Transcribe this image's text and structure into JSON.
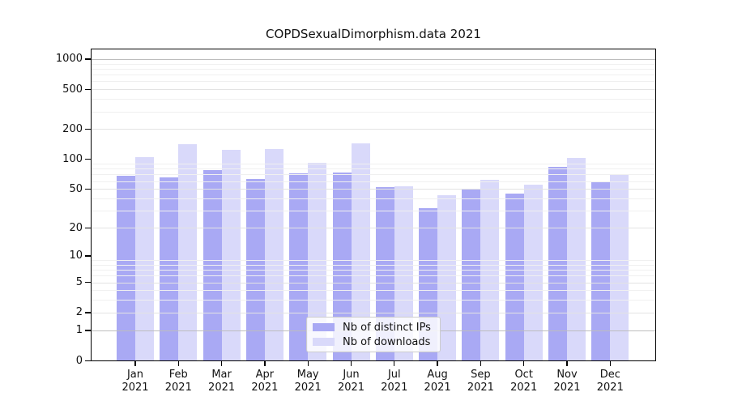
{
  "title": "COPDSexualDimorphism.data 2021",
  "chart_data": {
    "type": "bar",
    "categories": [
      "Jan",
      "Feb",
      "Mar",
      "Apr",
      "May",
      "Jun",
      "Jul",
      "Aug",
      "Sep",
      "Oct",
      "Nov",
      "Dec"
    ],
    "year": "2021",
    "series": [
      {
        "name": "Nb of distinct IPs",
        "color": "#a9a9f4",
        "values": [
          68,
          66,
          77,
          63,
          72,
          73,
          52,
          32,
          50,
          45,
          84,
          58
        ]
      },
      {
        "name": "Nb of downloads",
        "color": "#d9d9fa",
        "values": [
          104,
          140,
          123,
          127,
          92,
          145,
          53,
          43,
          62,
          55,
          103,
          69
        ]
      }
    ],
    "xlabel": "",
    "ylabel": "",
    "yscale": "log10(value+1)",
    "ylim": [
      0,
      1000
    ],
    "y_ticks": [
      1000,
      500,
      200,
      100,
      50,
      20,
      10,
      5,
      2,
      1,
      0
    ],
    "y_tick_labels": [
      "1000",
      "500",
      "200",
      "100",
      "50",
      "20",
      "10",
      "5",
      "2",
      "1",
      "0"
    ],
    "grid": true,
    "legend_position": "bottom-center",
    "grid_colors": {
      "decade": "#bdbdbd",
      "labeled_minor": "#e3e3e3",
      "minor": "#f0f0f0"
    }
  }
}
